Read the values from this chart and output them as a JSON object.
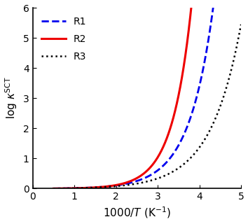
{
  "xlim": [
    0,
    5
  ],
  "ylim": [
    0,
    6
  ],
  "xticks": [
    0,
    1,
    2,
    3,
    4,
    5
  ],
  "yticks": [
    0,
    1,
    2,
    3,
    4,
    5,
    6
  ],
  "x_start": 0.5,
  "curves": {
    "R1": {
      "label": "R1",
      "color": "#0000ee",
      "linestyle": "--",
      "linewidth": 2.0,
      "a": 0.0035,
      "b": 1.72
    },
    "R2": {
      "label": "R2",
      "color": "#ee0000",
      "linestyle": "-",
      "linewidth": 2.2,
      "a": 0.0015,
      "b": 2.18
    },
    "R3": {
      "label": "R3",
      "color": "#000000",
      "linestyle": ":",
      "linewidth": 1.8,
      "a": 0.0055,
      "b": 1.38
    }
  },
  "legend_loc": "upper left",
  "legend_fontsize": 10,
  "axis_fontsize": 11,
  "tick_fontsize": 10
}
